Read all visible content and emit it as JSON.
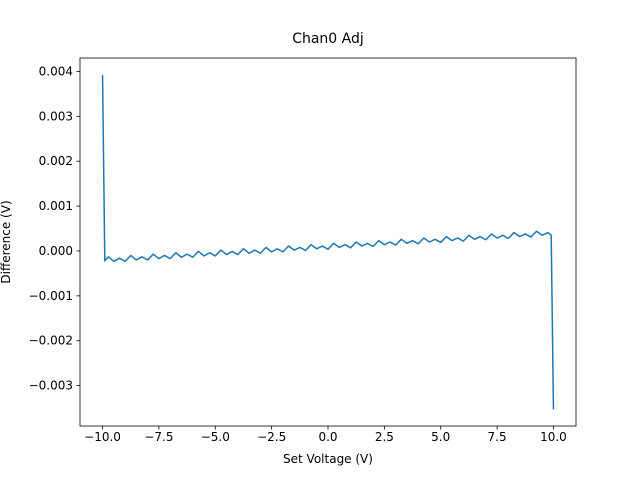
{
  "chart_data": {
    "type": "line",
    "title": "Chan0 Adj",
    "x_label": "Set Voltage (V)",
    "y_label": "Difference (V)",
    "color": "#1f77b4",
    "x": [
      -10,
      -9.9,
      -9.75,
      -9.5,
      -9.25,
      -9,
      -8.75,
      -8.5,
      -8.25,
      -8,
      -7.75,
      -7.5,
      -7.25,
      -7,
      -6.75,
      -6.5,
      -6.25,
      -6,
      -5.75,
      -5.5,
      -5.25,
      -5,
      -4.75,
      -4.5,
      -4.25,
      -4,
      -3.75,
      -3.5,
      -3.25,
      -3,
      -2.75,
      -2.5,
      -2.25,
      -2,
      -1.75,
      -1.5,
      -1.25,
      -1,
      -0.75,
      -0.5,
      -0.25,
      0,
      0.25,
      0.5,
      0.75,
      1,
      1.25,
      1.5,
      1.75,
      2,
      2.25,
      2.5,
      2.75,
      3,
      3.25,
      3.5,
      3.75,
      4,
      4.25,
      4.5,
      4.75,
      5,
      5.25,
      5.5,
      5.75,
      6,
      6.25,
      6.5,
      6.75,
      7,
      7.25,
      7.5,
      7.75,
      8,
      8.25,
      8.5,
      8.75,
      9,
      9.25,
      9.5,
      9.75,
      9.9,
      10
    ],
    "values": [
      0.00392,
      -0.00022,
      -0.00013,
      -0.00023,
      -0.00016,
      -0.00023,
      -0.0001,
      -0.0002,
      -0.00013,
      -0.0002,
      -7e-05,
      -0.00017,
      -0.0001,
      -0.00017,
      -4e-05,
      -0.00014,
      -7e-05,
      -0.00014,
      -1e-05,
      -0.00011,
      -4e-05,
      -0.00011,
      2e-05,
      -8e-05,
      -1e-05,
      -8e-05,
      5e-05,
      -5e-05,
      2e-05,
      -5e-05,
      8e-05,
      -2e-05,
      5e-05,
      -2e-05,
      0.00011,
      2e-05,
      8e-05,
      1e-05,
      0.00014,
      5e-05,
      0.00011,
      4e-05,
      0.00017,
      8e-05,
      0.00014,
      7e-05,
      0.0002,
      0.00011,
      0.00017,
      0.0001,
      0.00023,
      0.00014,
      0.0002,
      0.00013,
      0.00026,
      0.00017,
      0.00023,
      0.00016,
      0.00029,
      0.0002,
      0.00026,
      0.00019,
      0.00032,
      0.00023,
      0.00029,
      0.00022,
      0.00035,
      0.00026,
      0.00032,
      0.00025,
      0.00038,
      0.00029,
      0.00035,
      0.00028,
      0.00041,
      0.00032,
      0.00038,
      0.00031,
      0.00044,
      0.00035,
      0.00041,
      0.00035,
      -0.00353
    ],
    "xlim": [
      -11,
      11
    ],
    "xticks": [
      {
        "value": -10,
        "label": "−10.0"
      },
      {
        "value": -7.5,
        "label": "−7.5"
      },
      {
        "value": -5,
        "label": "−5.0"
      },
      {
        "value": -2.5,
        "label": "−2.5"
      },
      {
        "value": 0,
        "label": "0.0"
      },
      2.5,
      {
        "value": 5,
        "label": "5.0"
      },
      7.5,
      {
        "value": 10,
        "label": "10.0"
      }
    ],
    "ylim": [
      -0.0039,
      0.0043
    ],
    "yticks": [
      {
        "value": -0.003,
        "label": "−0.003"
      },
      {
        "value": -0.002,
        "label": "−0.002"
      },
      {
        "value": -0.001,
        "label": "−0.001"
      },
      {
        "value": 0,
        "label": "0.000"
      },
      0.001,
      0.002,
      0.003,
      0.004
    ]
  }
}
